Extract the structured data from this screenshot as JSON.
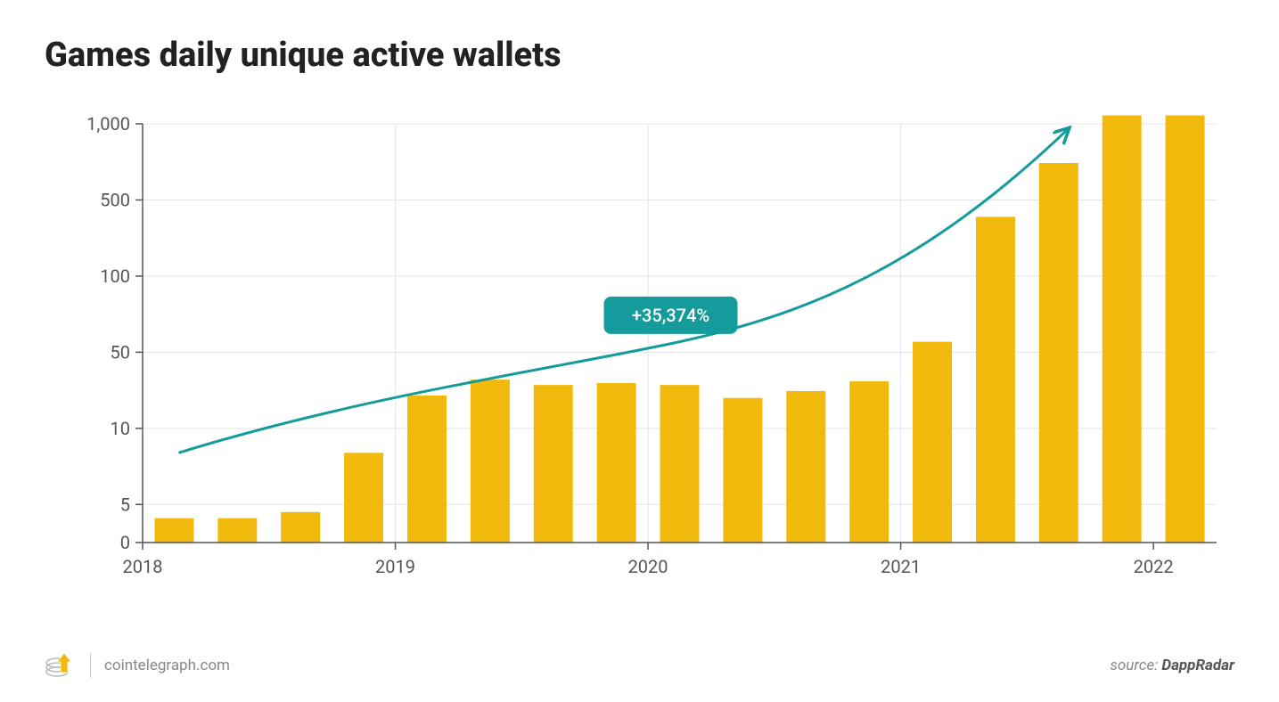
{
  "title": "Games daily unique active wallets",
  "footer": {
    "site": "cointelegraph.com",
    "source_label": "source: ",
    "source_name": "DappRadar"
  },
  "chart": {
    "type": "bar",
    "background_color": "#ffffff",
    "bar_color": "#f0b90b",
    "grid_color": "#e5e5e5",
    "axis_color": "#555555",
    "tick_font_size": 20,
    "tick_color": "#555555",
    "y_scale": "symlog-like",
    "y_ticks": [
      0,
      5,
      10,
      50,
      100,
      500,
      1000
    ],
    "y_tick_labels": [
      "0",
      "5",
      "10",
      "50",
      "100",
      "500",
      "1,000"
    ],
    "x_ticks": [
      0,
      4,
      8,
      12,
      16
    ],
    "x_tick_labels": [
      "2018",
      "2019",
      "2020",
      "2021",
      "2022"
    ],
    "x_grid_at": [
      4,
      8,
      12
    ],
    "values": [
      3.2,
      3.2,
      4,
      8,
      20,
      28,
      25,
      26,
      25,
      19,
      22,
      27,
      55,
      350,
      700,
      1080,
      1080
    ],
    "annotation": {
      "text": "+35,374%",
      "bg_color": "#159b9b",
      "text_color": "#ffffff",
      "font_size": 20,
      "arrow_color": "#159b9b",
      "arrow_width": 3
    },
    "bar_width_ratio": 0.62
  }
}
